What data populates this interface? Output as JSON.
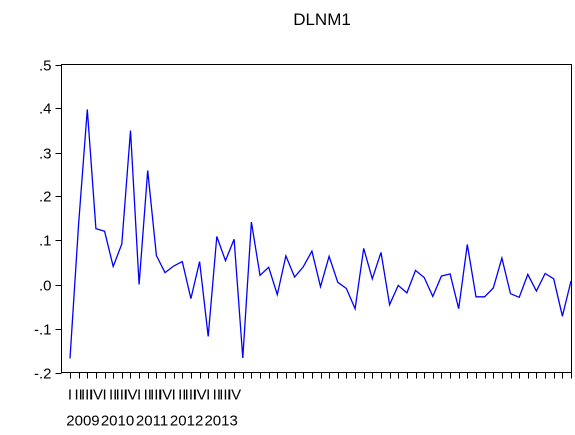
{
  "chart_data": {
    "type": "line",
    "title": "DLNM1",
    "xlabel": "",
    "ylabel": "",
    "ylim": [
      -0.2,
      0.5
    ],
    "yticks": [
      -0.2,
      -0.1,
      0.0,
      0.1,
      0.2,
      0.3,
      0.4,
      0.5
    ],
    "ytick_labels": [
      "-.2",
      "-.1",
      ".0",
      ".1",
      ".2",
      ".3",
      ".4",
      ".5"
    ],
    "years": [
      "2009",
      "2010",
      "2011",
      "2012",
      "2013"
    ],
    "quarters": [
      "I",
      "II",
      "III",
      "IV"
    ],
    "grid": false,
    "legend": "none",
    "series_color": "#0000ff",
    "values": [
      -0.168,
      0.137,
      0.398,
      0.127,
      0.121,
      0.041,
      0.092,
      0.35,
      0.0,
      0.259,
      0.066,
      0.027,
      0.042,
      0.052,
      -0.032,
      0.052,
      -0.118,
      0.109,
      0.054,
      0.103,
      -0.167,
      0.142,
      0.021,
      0.039,
      -0.023,
      0.065,
      0.017,
      0.04,
      0.076,
      -0.005,
      0.064,
      0.005,
      -0.009,
      -0.055,
      0.082,
      0.013,
      0.073,
      -0.046,
      -0.002,
      -0.019,
      0.032,
      0.016,
      -0.027,
      0.019,
      0.024,
      -0.055,
      0.091,
      -0.028,
      -0.028,
      -0.008,
      0.06,
      -0.021,
      -0.029,
      0.023,
      -0.015,
      0.025,
      0.013,
      -0.072,
      0.008
    ]
  }
}
